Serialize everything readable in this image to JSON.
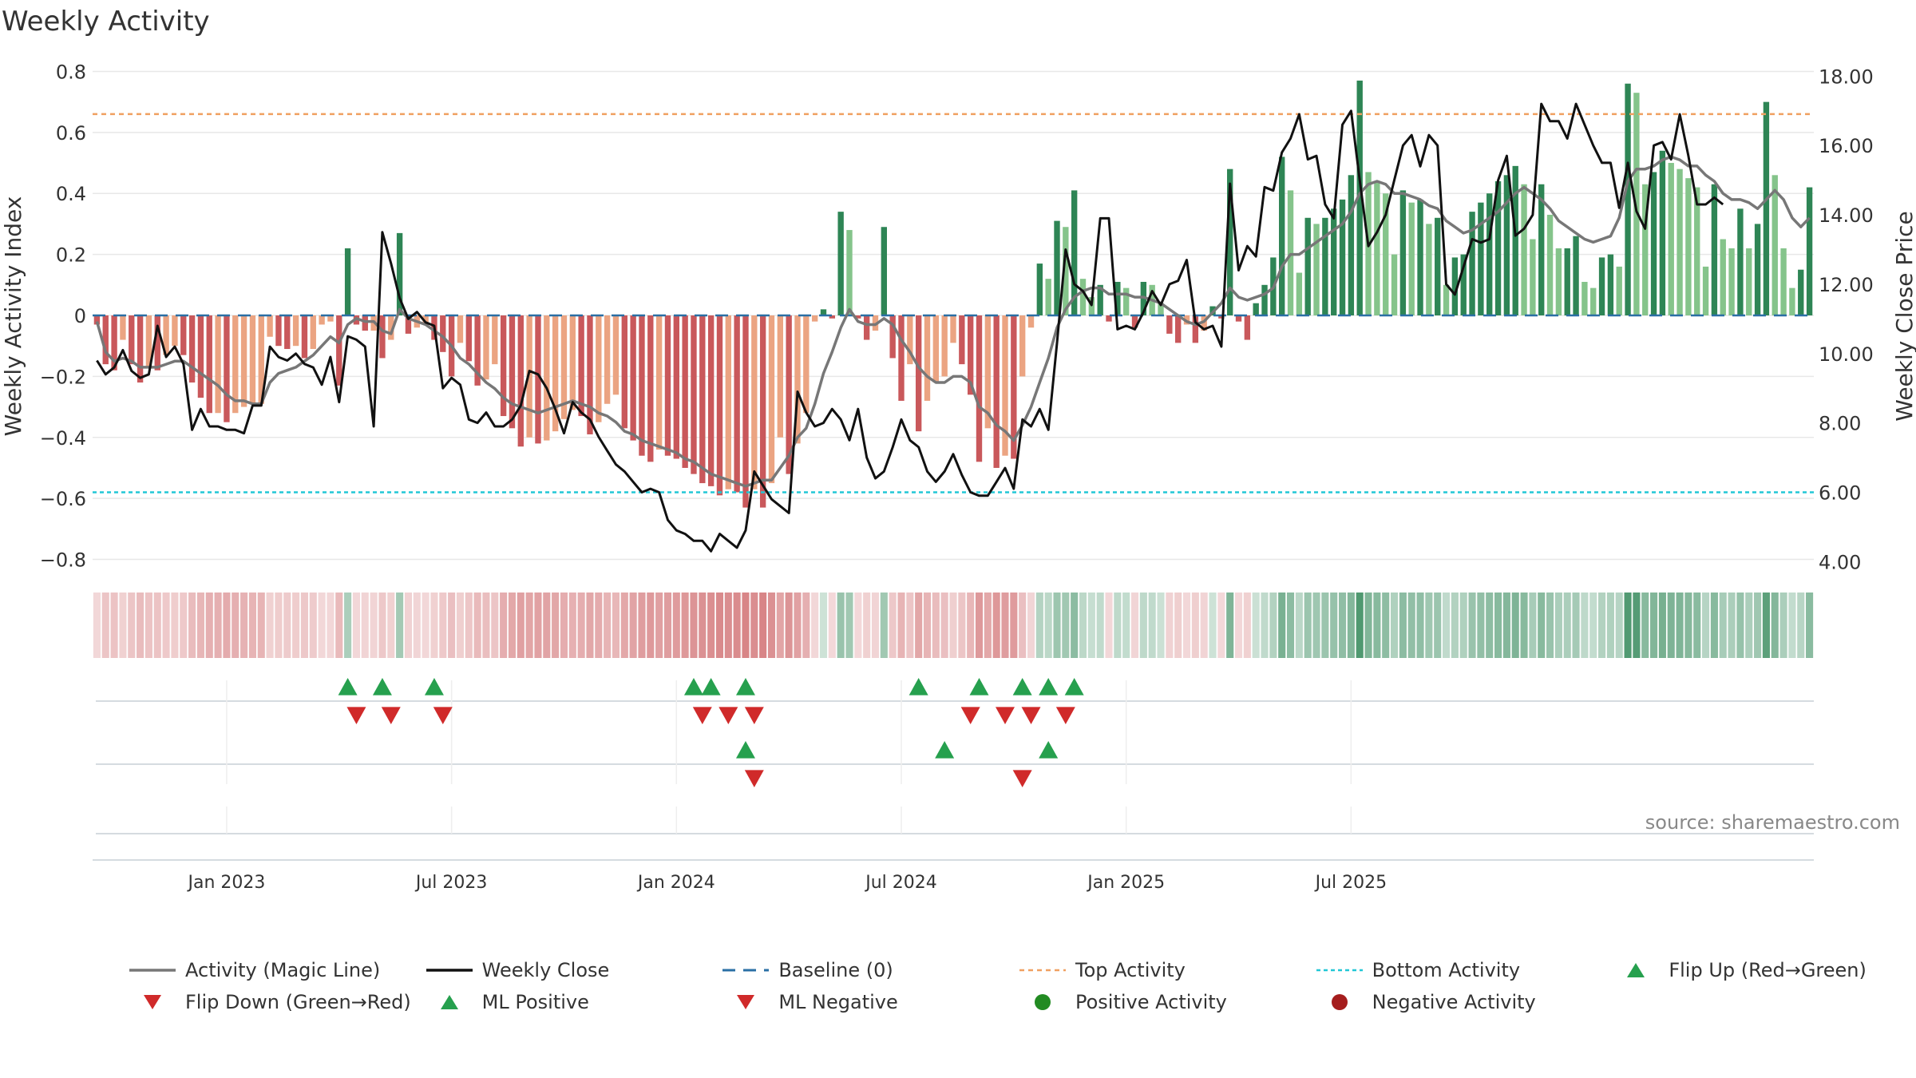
{
  "chart_data": {
    "type": "bar",
    "title": "Weekly Activity",
    "ylabel": "Weekly Activity Index",
    "y2label": "Weekly Close Price",
    "source": "source: sharemaestro.com",
    "ylim": [
      -0.83,
      0.83
    ],
    "y2lim": [
      3.8,
      18.4
    ],
    "yticks": [
      {
        "v": 0.8,
        "label": "0.8"
      },
      {
        "v": 0.6,
        "label": "0.6"
      },
      {
        "v": 0.4,
        "label": "0.4"
      },
      {
        "v": 0.2,
        "label": "0.2"
      },
      {
        "v": 0,
        "label": "0"
      },
      {
        "v": -0.2,
        "label": "−0.2"
      },
      {
        "v": -0.4,
        "label": "−0.4"
      },
      {
        "v": -0.6,
        "label": "−0.6"
      },
      {
        "v": -0.8,
        "label": "−0.8"
      }
    ],
    "y2ticks": [
      {
        "v": 18,
        "label": "18.00"
      },
      {
        "v": 16,
        "label": "16.00"
      },
      {
        "v": 14,
        "label": "14.00"
      },
      {
        "v": 12,
        "label": "12.00"
      },
      {
        "v": 10,
        "label": "10.00"
      },
      {
        "v": 8,
        "label": "8.00"
      },
      {
        "v": 6,
        "label": "6.00"
      },
      {
        "v": 4,
        "label": "4.00"
      }
    ],
    "xticks": [
      {
        "week": 15,
        "label": "Jan 2023"
      },
      {
        "week": 41,
        "label": "Jul 2023"
      },
      {
        "week": 67,
        "label": "Jan 2024"
      },
      {
        "week": 93,
        "label": "Jul 2024"
      },
      {
        "week": 119,
        "label": "Jan 2025"
      },
      {
        "week": 145,
        "label": "Jul 2025"
      }
    ],
    "thresholds": {
      "top": 0.66,
      "bottom": -0.58,
      "baseline": 0
    },
    "activity": [
      -0.03,
      -0.16,
      -0.18,
      -0.08,
      -0.16,
      -0.22,
      -0.17,
      -0.18,
      -0.13,
      -0.1,
      -0.13,
      -0.22,
      -0.27,
      -0.32,
      -0.32,
      -0.35,
      -0.32,
      -0.3,
      -0.29,
      -0.29,
      -0.07,
      -0.1,
      -0.11,
      -0.1,
      -0.14,
      -0.11,
      -0.03,
      -0.02,
      -0.23,
      0.22,
      -0.03,
      -0.05,
      -0.05,
      -0.14,
      -0.08,
      0.27,
      -0.06,
      -0.04,
      -0.03,
      -0.08,
      -0.12,
      -0.2,
      -0.09,
      -0.15,
      -0.23,
      -0.21,
      -0.16,
      -0.33,
      -0.37,
      -0.43,
      -0.4,
      -0.42,
      -0.41,
      -0.38,
      -0.34,
      -0.31,
      -0.33,
      -0.39,
      -0.35,
      -0.29,
      -0.26,
      -0.37,
      -0.41,
      -0.46,
      -0.48,
      -0.44,
      -0.46,
      -0.47,
      -0.5,
      -0.52,
      -0.55,
      -0.56,
      -0.59,
      -0.57,
      -0.58,
      -0.63,
      -0.57,
      -0.63,
      -0.55,
      -0.4,
      -0.52,
      -0.42,
      -0.32,
      -0.02,
      0.02,
      -0.01,
      0.34,
      0.28,
      -0.01,
      -0.08,
      -0.05,
      0.29,
      -0.14,
      -0.28,
      -0.16,
      -0.38,
      -0.28,
      -0.22,
      -0.2,
      -0.09,
      -0.16,
      -0.26,
      -0.48,
      -0.37,
      -0.5,
      -0.46,
      -0.47,
      -0.2,
      -0.04,
      0.17,
      0.12,
      0.31,
      0.29,
      0.41,
      0.12,
      0.06,
      0.1,
      -0.02,
      0.11,
      0.09,
      -0.04,
      0.11,
      0.1,
      0.04,
      -0.06,
      -0.09,
      -0.03,
      -0.09,
      -0.05,
      0.03,
      -0.01,
      0.48,
      -0.02,
      -0.08,
      0.04,
      0.1,
      0.19,
      0.52,
      0.41,
      0.14,
      0.32,
      0.3,
      0.32,
      0.35,
      0.38,
      0.46,
      0.77,
      0.47,
      0.44,
      0.4,
      0.2,
      0.41,
      0.37,
      0.38,
      0.3,
      0.32,
      0.1,
      0.19,
      0.2,
      0.34,
      0.37,
      0.4,
      0.44,
      0.46,
      0.49,
      0.43,
      0.25,
      0.43,
      0.33,
      0.22,
      0.22,
      0.26,
      0.11,
      0.09,
      0.19,
      0.2,
      0.16,
      0.76,
      0.73,
      0.43,
      0.47,
      0.54,
      0.5,
      0.48,
      0.45,
      0.42,
      0.16,
      0.43,
      0.25,
      0.22,
      0.35,
      0.22,
      0.3,
      0.7,
      0.46,
      0.22,
      0.09,
      0.15,
      0.42
    ],
    "magic_line": [
      -0.02,
      -0.12,
      -0.15,
      -0.14,
      -0.15,
      -0.17,
      -0.17,
      -0.17,
      -0.16,
      -0.15,
      -0.15,
      -0.17,
      -0.19,
      -0.21,
      -0.23,
      -0.26,
      -0.28,
      -0.28,
      -0.29,
      -0.29,
      -0.22,
      -0.19,
      -0.18,
      -0.17,
      -0.15,
      -0.13,
      -0.1,
      -0.07,
      -0.09,
      -0.03,
      -0.01,
      -0.02,
      -0.02,
      -0.05,
      -0.06,
      0.02,
      -0.01,
      -0.02,
      -0.03,
      -0.05,
      -0.07,
      -0.1,
      -0.14,
      -0.16,
      -0.19,
      -0.22,
      -0.24,
      -0.27,
      -0.29,
      -0.3,
      -0.31,
      -0.32,
      -0.31,
      -0.3,
      -0.29,
      -0.28,
      -0.29,
      -0.3,
      -0.32,
      -0.33,
      -0.35,
      -0.38,
      -0.39,
      -0.41,
      -0.42,
      -0.43,
      -0.44,
      -0.45,
      -0.47,
      -0.48,
      -0.5,
      -0.52,
      -0.53,
      -0.54,
      -0.55,
      -0.56,
      -0.55,
      -0.54,
      -0.54,
      -0.5,
      -0.46,
      -0.4,
      -0.37,
      -0.29,
      -0.19,
      -0.12,
      -0.04,
      0.02,
      -0.02,
      -0.03,
      -0.03,
      -0.01,
      -0.03,
      -0.08,
      -0.12,
      -0.17,
      -0.2,
      -0.22,
      -0.22,
      -0.2,
      -0.2,
      -0.22,
      -0.3,
      -0.32,
      -0.36,
      -0.38,
      -0.41,
      -0.36,
      -0.3,
      -0.22,
      -0.14,
      -0.04,
      0.02,
      0.06,
      0.08,
      0.09,
      0.09,
      0.07,
      0.07,
      0.07,
      0.06,
      0.06,
      0.05,
      0.04,
      0.02,
      0.0,
      -0.02,
      -0.03,
      -0.02,
      0.01,
      0.04,
      0.09,
      0.06,
      0.05,
      0.06,
      0.07,
      0.09,
      0.16,
      0.2,
      0.2,
      0.22,
      0.24,
      0.26,
      0.28,
      0.3,
      0.34,
      0.4,
      0.43,
      0.44,
      0.43,
      0.4,
      0.4,
      0.39,
      0.38,
      0.36,
      0.35,
      0.31,
      0.29,
      0.27,
      0.28,
      0.3,
      0.32,
      0.34,
      0.37,
      0.4,
      0.42,
      0.4,
      0.38,
      0.35,
      0.31,
      0.29,
      0.27,
      0.25,
      0.24,
      0.25,
      0.26,
      0.32,
      0.44,
      0.48,
      0.48,
      0.49,
      0.51,
      0.52,
      0.51,
      0.49,
      0.49,
      0.46,
      0.44,
      0.4,
      0.38,
      0.38,
      0.37,
      0.35,
      0.38,
      0.41,
      0.38,
      0.32,
      0.29,
      0.32
    ],
    "weekly_close": [
      9.8,
      9.4,
      9.6,
      10.1,
      9.5,
      9.3,
      9.4,
      10.8,
      9.9,
      10.2,
      9.7,
      7.8,
      8.4,
      7.9,
      7.9,
      7.8,
      7.8,
      7.7,
      8.5,
      8.5,
      10.2,
      9.9,
      9.8,
      10.0,
      9.7,
      9.6,
      9.1,
      9.9,
      8.6,
      10.5,
      10.4,
      10.2,
      7.9,
      13.5,
      12.6,
      11.6,
      11.0,
      11.2,
      10.9,
      10.8,
      9.0,
      9.3,
      9.1,
      8.1,
      8.0,
      8.3,
      7.9,
      7.9,
      8.1,
      8.5,
      9.5,
      9.4,
      9.0,
      8.4,
      7.7,
      8.6,
      8.3,
      8.1,
      7.6,
      7.2,
      6.8,
      6.6,
      6.3,
      6.0,
      6.1,
      6.0,
      5.2,
      4.9,
      4.8,
      4.6,
      4.6,
      4.3,
      4.8,
      4.6,
      4.4,
      4.9,
      6.6,
      6.2,
      5.8,
      5.6,
      5.4,
      8.9,
      8.3,
      7.9,
      8.0,
      8.4,
      8.1,
      7.5,
      8.4,
      7.0,
      6.4,
      6.6,
      7.3,
      8.1,
      7.5,
      7.3,
      6.6,
      6.3,
      6.6,
      7.1,
      6.5,
      6.0,
      5.9,
      5.9,
      6.3,
      6.7,
      6.1,
      8.1,
      7.9,
      8.4,
      7.8,
      10.3,
      13.0,
      12.0,
      11.8,
      11.4,
      13.9,
      13.9,
      10.7,
      10.8,
      10.7,
      11.2,
      11.8,
      11.4,
      12.0,
      12.1,
      12.7,
      10.9,
      10.7,
      10.8,
      10.2,
      14.9,
      12.4,
      13.1,
      12.8,
      14.8,
      14.7,
      15.8,
      16.2,
      16.9,
      15.6,
      15.7,
      14.3,
      13.9,
      16.6,
      17.0,
      15.0,
      13.1,
      13.5,
      14.0,
      15.0,
      16.0,
      16.3,
      15.4,
      16.3,
      16.0,
      12.0,
      11.7,
      12.5,
      13.3,
      13.2,
      13.3,
      15.0,
      15.7,
      13.4,
      13.6,
      14.0,
      17.2,
      16.7,
      16.7,
      16.2,
      17.2,
      16.6,
      16.0,
      15.5,
      15.5,
      14.2,
      15.5,
      14.1,
      13.6,
      16.0,
      16.1,
      15.6,
      16.9,
      15.7,
      14.3,
      14.3,
      14.5,
      14.3
    ],
    "flip_up_weeks": [
      29,
      33,
      39,
      69,
      71,
      75,
      95,
      102,
      107,
      110,
      113
    ],
    "flip_down_weeks": [
      30,
      34,
      40,
      70,
      73,
      76,
      101,
      105,
      108,
      112
    ],
    "ml_positive_weeks": [
      75,
      98,
      110
    ],
    "ml_negative_weeks": [
      76,
      107
    ],
    "legend": [
      {
        "key": "activity",
        "label": "Activity (Magic Line)"
      },
      {
        "key": "close",
        "label": "Weekly Close"
      },
      {
        "key": "baseline",
        "label": "Baseline (0)"
      },
      {
        "key": "top",
        "label": "Top Activity"
      },
      {
        "key": "bottom",
        "label": "Bottom Activity"
      },
      {
        "key": "flip_up",
        "label": "Flip Up (Red→Green)"
      },
      {
        "key": "flip_down",
        "label": "Flip Down (Green→Red)"
      },
      {
        "key": "ml_pos",
        "label": "ML Positive"
      },
      {
        "key": "ml_neg",
        "label": "ML Negative"
      },
      {
        "key": "pos_act",
        "label": "Positive Activity"
      },
      {
        "key": "neg_act",
        "label": "Negative Activity"
      }
    ]
  },
  "colors": {
    "pos_dark": "#2e8555",
    "pos_light": "#85c48b",
    "neg_dark": "#c9585b",
    "neg_light": "#eba482",
    "magic_line": "#777777",
    "close_line": "#111111",
    "baseline": "#2a6fa5",
    "top": "#f0a060",
    "bottom": "#22c7d6",
    "up_marker": "#26a04e",
    "down_marker": "#d02a2a",
    "pos_dot": "#228b22",
    "neg_dot": "#a51d1d",
    "grid": "#e8e8e8",
    "text": "#333333"
  }
}
